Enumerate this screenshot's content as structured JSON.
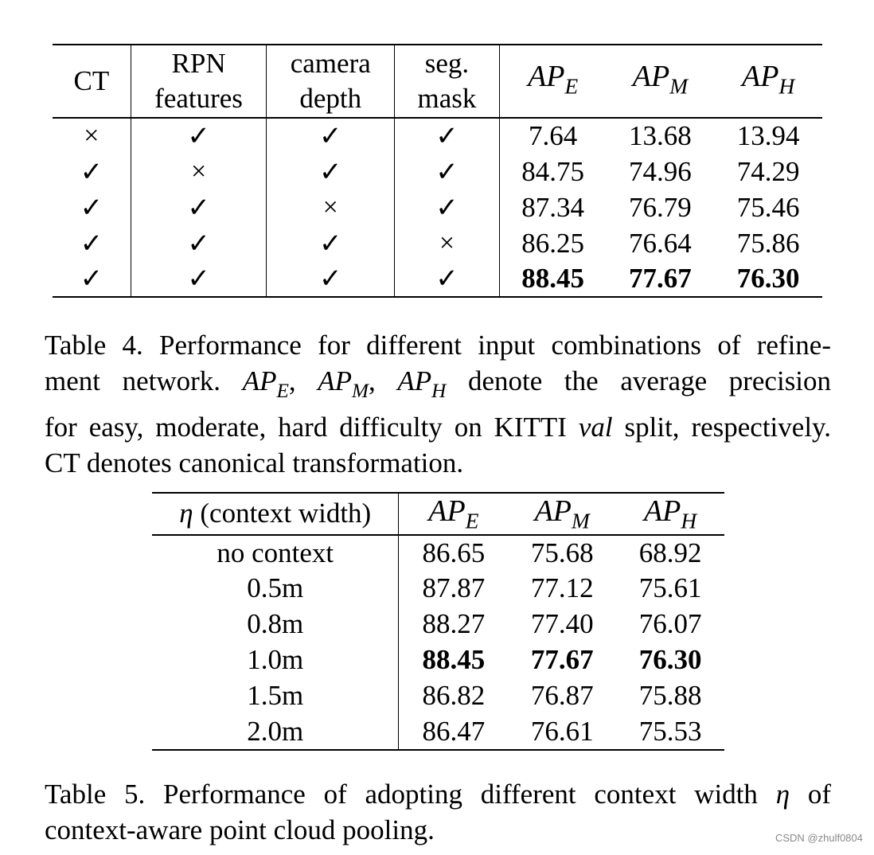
{
  "table4": {
    "headers": {
      "ct": "CT",
      "rpn_line1": "RPN",
      "rpn_line2": "features",
      "cam_line1": "camera",
      "cam_line2": "depth",
      "seg_line1": "seg.",
      "seg_line2": "mask",
      "ap_base": "AP",
      "ape_sub": "E",
      "apm_sub": "M",
      "aph_sub": "H"
    },
    "rows": [
      {
        "ct": "×",
        "rpn": "✓",
        "cam": "✓",
        "seg": "✓",
        "ape": "7.64",
        "apm": "13.68",
        "aph": "13.94"
      },
      {
        "ct": "✓",
        "rpn": "×",
        "cam": "✓",
        "seg": "✓",
        "ape": "84.75",
        "apm": "74.96",
        "aph": "74.29"
      },
      {
        "ct": "✓",
        "rpn": "✓",
        "cam": "×",
        "seg": "✓",
        "ape": "87.34",
        "apm": "76.79",
        "aph": "75.46"
      },
      {
        "ct": "✓",
        "rpn": "✓",
        "cam": "✓",
        "seg": "×",
        "ape": "86.25",
        "apm": "76.64",
        "aph": "75.86"
      },
      {
        "ct": "✓",
        "rpn": "✓",
        "cam": "✓",
        "seg": "✓",
        "ape": "88.45",
        "apm": "77.67",
        "aph": "76.30"
      }
    ]
  },
  "caption4": {
    "line1": "Table 4. Performance for different input combinations of refine-",
    "line2_a": "ment network.",
    "line2_b": "denote the average precision",
    "line3_a": "for easy, moderate, hard difficulty on KITTI",
    "line3_val": "val",
    "line3_b": "split, respectively.",
    "line4": "CT denotes canonical transformation."
  },
  "table5": {
    "headers": {
      "eta_symbol": "η",
      "eta_label": "(context width)",
      "ap_base": "AP",
      "ape_sub": "E",
      "apm_sub": "M",
      "aph_sub": "H"
    },
    "rows": [
      {
        "eta": "no context",
        "ape": "86.65",
        "apm": "75.68",
        "aph": "68.92"
      },
      {
        "eta": "0.5m",
        "ape": "87.87",
        "apm": "77.12",
        "aph": "75.61"
      },
      {
        "eta": "0.8m",
        "ape": "88.27",
        "apm": "77.40",
        "aph": "76.07"
      },
      {
        "eta": "1.0m",
        "ape": "88.45",
        "apm": "77.67",
        "aph": "76.30"
      },
      {
        "eta": "1.5m",
        "ape": "86.82",
        "apm": "76.87",
        "aph": "75.88"
      },
      {
        "eta": "2.0m",
        "ape": "86.47",
        "apm": "76.61",
        "aph": "75.53"
      }
    ]
  },
  "caption5": {
    "line1_a": "Table 5. Performance of adopting different context width",
    "line1_b": "of",
    "line2": "context-aware point cloud pooling."
  },
  "watermark": "CSDN @zhulf0804"
}
